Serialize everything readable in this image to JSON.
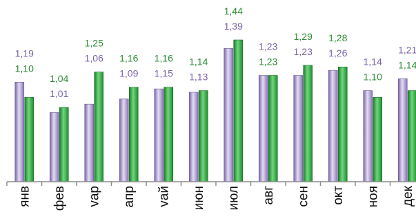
{
  "chart_data": {
    "type": "bar",
    "categories": [
      "янв",
      "фев",
      "мар",
      "апр",
      "май",
      "июн",
      "июл",
      "авг",
      "сен",
      "окт",
      "ноя",
      "дек"
    ],
    "tick_labels": [
      "янв",
      "фев",
      "vар",
      "апр",
      "vай",
      "июн",
      "июл",
      "авг",
      "сен",
      "окт",
      "ноя",
      "дек"
    ],
    "series": [
      {
        "color": "#9b86c4",
        "values": [
          1.19,
          1.01,
          1.06,
          1.09,
          1.15,
          1.13,
          1.39,
          1.23,
          1.23,
          1.26,
          1.14,
          1.21
        ],
        "labels": [
          "1,19",
          "1,01",
          "1,06",
          "1,09",
          "1,15",
          "1,13",
          "1,39",
          "1,23",
          "1,23",
          "1,26",
          "1,14",
          "1,21"
        ],
        "label_color": "#7b62a8"
      },
      {
        "color": "#2e9e3e",
        "values": [
          1.1,
          1.04,
          1.25,
          1.16,
          1.16,
          1.14,
          1.44,
          1.23,
          1.29,
          1.28,
          1.1,
          1.14
        ],
        "labels": [
          "1,10",
          "1,04",
          "1,25",
          "1,16",
          "1,16",
          "1,14",
          "1,44",
          "1,23",
          "1,29",
          "1,28",
          "1,10",
          "1,14"
        ],
        "label_color": "#2e8b35"
      }
    ],
    "title": "",
    "xlabel": "",
    "ylabel": "",
    "ylim": [
      0.6,
      1.44
    ],
    "grid": false,
    "legend": "none"
  }
}
